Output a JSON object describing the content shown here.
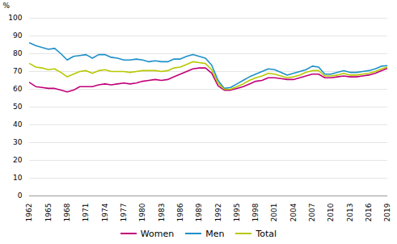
{
  "chart_data": {
    "type": "line",
    "x": [
      1962,
      1963,
      1964,
      1965,
      1966,
      1967,
      1968,
      1969,
      1970,
      1971,
      1972,
      1973,
      1974,
      1975,
      1976,
      1977,
      1978,
      1979,
      1980,
      1981,
      1982,
      1983,
      1984,
      1985,
      1986,
      1987,
      1988,
      1989,
      1990,
      1991,
      1992,
      1993,
      1994,
      1995,
      1996,
      1997,
      1998,
      1999,
      2000,
      2001,
      2002,
      2003,
      2004,
      2005,
      2006,
      2007,
      2008,
      2009,
      2010,
      2011,
      2012,
      2013,
      2014,
      2015,
      2016,
      2017,
      2018,
      2019
    ],
    "series": [
      {
        "name": "Women",
        "color": "#c0007a",
        "values": [
          63.8,
          61.5,
          61.0,
          60.5,
          60.5,
          59.5,
          58.5,
          59.5,
          61.5,
          61.5,
          61.5,
          62.5,
          63.0,
          62.5,
          63.0,
          63.5,
          63.0,
          63.5,
          64.5,
          65.0,
          65.5,
          65.0,
          65.5,
          67.0,
          68.5,
          70.0,
          71.5,
          72.0,
          72.0,
          69.0,
          62.0,
          59.5,
          59.5,
          60.5,
          61.5,
          63.0,
          64.5,
          65.0,
          66.5,
          66.5,
          66.0,
          65.5,
          65.5,
          66.5,
          67.5,
          68.5,
          68.5,
          66.5,
          66.5,
          67.0,
          67.5,
          67.0,
          67.0,
          67.5,
          68.0,
          69.0,
          70.5,
          71.8
        ]
      },
      {
        "name": "Men",
        "color": "#1e90c8",
        "values": [
          86.1,
          84.5,
          83.5,
          82.5,
          83.0,
          80.0,
          76.5,
          78.5,
          79.0,
          79.5,
          77.5,
          79.5,
          79.5,
          78.0,
          77.5,
          76.5,
          76.5,
          77.0,
          76.5,
          75.5,
          76.0,
          75.5,
          75.5,
          77.0,
          77.0,
          78.5,
          79.5,
          78.5,
          77.5,
          73.5,
          65.0,
          60.5,
          61.0,
          63.0,
          65.0,
          67.0,
          68.5,
          70.0,
          71.5,
          71.0,
          69.5,
          68.0,
          69.0,
          70.0,
          71.0,
          73.0,
          72.5,
          68.5,
          68.5,
          69.5,
          70.5,
          69.5,
          69.5,
          70.0,
          70.5,
          71.5,
          73.0,
          73.3
        ]
      },
      {
        "name": "Total",
        "color": "#b8c800",
        "values": [
          74.5,
          72.5,
          72.0,
          71.0,
          71.5,
          69.5,
          67.0,
          68.5,
          70.0,
          70.5,
          69.0,
          70.5,
          71.0,
          70.0,
          70.0,
          70.0,
          69.5,
          70.0,
          70.5,
          70.5,
          70.5,
          70.0,
          70.5,
          72.0,
          72.5,
          74.0,
          75.5,
          75.0,
          74.5,
          71.0,
          63.5,
          60.0,
          60.0,
          61.5,
          63.0,
          65.0,
          66.5,
          67.5,
          69.0,
          68.5,
          67.5,
          66.5,
          67.0,
          68.0,
          69.5,
          70.5,
          70.5,
          67.5,
          67.5,
          68.0,
          69.0,
          68.0,
          68.0,
          68.5,
          69.0,
          70.0,
          71.5,
          72.5
        ]
      }
    ],
    "ylabel": "%",
    "ylim": [
      0,
      100
    ],
    "yticks": [
      0,
      10,
      20,
      30,
      40,
      50,
      60,
      70,
      80,
      90,
      100
    ],
    "xlim": [
      1962,
      2019
    ],
    "xticks": [
      1962,
      1965,
      1968,
      1971,
      1974,
      1977,
      1980,
      1983,
      1986,
      1989,
      1992,
      1995,
      1998,
      2001,
      2004,
      2007,
      2010,
      2013,
      2016,
      2019
    ],
    "grid": true,
    "legend": "bottom"
  }
}
